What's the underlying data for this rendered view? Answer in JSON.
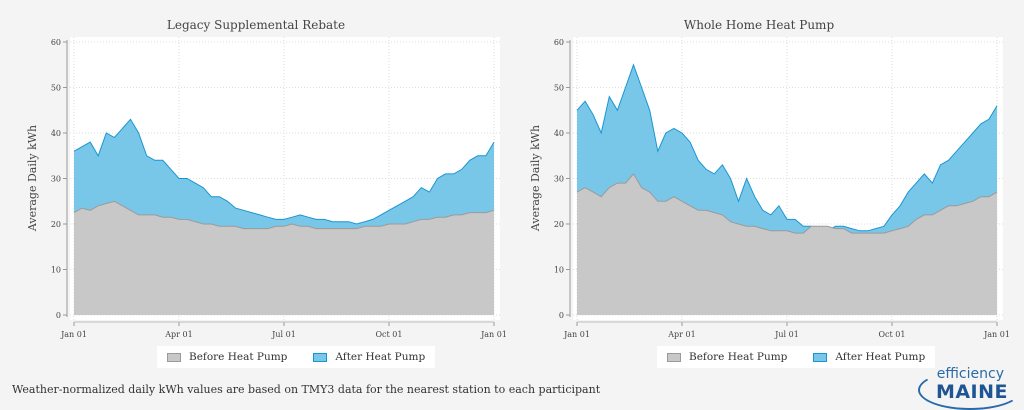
{
  "chart_data": [
    {
      "type": "area",
      "title": "Legacy Supplemental Rebate",
      "xlabel": "",
      "ylabel": "Average Daily kWh",
      "ylim": [
        0,
        60
      ],
      "yticks": [
        "0",
        "10",
        "20",
        "30",
        "40",
        "50",
        "60"
      ],
      "xticks": [
        "Jan 01",
        "Apr 01",
        "Jul 01",
        "Oct 01",
        "Jan 01"
      ],
      "x_unit": "week of year (0-52)",
      "grid": true,
      "legend_placement": "bottom",
      "series": [
        {
          "name": "Before Heat Pump",
          "color": "#c8c8c8",
          "line": "#9a9a9a",
          "values": [
            22.5,
            23.5,
            23,
            24,
            24.5,
            25,
            24,
            23,
            22,
            22,
            22,
            21.5,
            21.5,
            21,
            21,
            20.5,
            20,
            20,
            19.5,
            19.5,
            19.5,
            19,
            19,
            19,
            19,
            19.5,
            19.5,
            20,
            19.5,
            19.5,
            19,
            19,
            19,
            19,
            19,
            19,
            19.5,
            19.5,
            19.5,
            20,
            20,
            20,
            20.5,
            21,
            21,
            21.5,
            21.5,
            22,
            22,
            22.5,
            22.5,
            22.5,
            23
          ]
        },
        {
          "name": "After Heat Pump",
          "color": "#79c7e8",
          "line": "#1a95d3",
          "values": [
            36,
            37,
            38,
            35,
            40,
            39,
            41,
            43,
            40,
            35,
            34,
            34,
            32,
            30,
            30,
            29,
            28,
            26,
            26,
            25,
            23.5,
            23,
            22.5,
            22,
            21.5,
            21,
            21,
            21.5,
            22,
            21.5,
            21,
            21,
            20.5,
            20.5,
            20.5,
            20,
            20.5,
            21,
            22,
            23,
            24,
            25,
            26,
            28,
            27,
            30,
            31,
            31,
            32,
            34,
            35,
            35,
            38
          ]
        }
      ]
    },
    {
      "type": "area",
      "title": "Whole Home Heat Pump",
      "xlabel": "",
      "ylabel": "Average Daily kWh",
      "ylim": [
        0,
        60
      ],
      "yticks": [
        "0",
        "10",
        "20",
        "30",
        "40",
        "50",
        "60"
      ],
      "xticks": [
        "Jan 01",
        "Apr 01",
        "Jul 01",
        "Oct 01",
        "Jan 01"
      ],
      "x_unit": "week of year (0-52)",
      "grid": true,
      "legend_placement": "bottom",
      "series": [
        {
          "name": "Before Heat Pump",
          "color": "#c8c8c8",
          "line": "#9a9a9a",
          "values": [
            27,
            28,
            27,
            26,
            28,
            29,
            29,
            31,
            28,
            27,
            25,
            25,
            26,
            25,
            24,
            23,
            23,
            22.5,
            22,
            20.5,
            20,
            19.5,
            19.5,
            19,
            18.5,
            18.5,
            18.5,
            18,
            18,
            19.5,
            19.5,
            19.5,
            19,
            19,
            18,
            18,
            18,
            18,
            18,
            18.5,
            19,
            19.5,
            21,
            22,
            22,
            23,
            24,
            24,
            24.5,
            25,
            26,
            26,
            27
          ]
        },
        {
          "name": "After Heat Pump",
          "color": "#79c7e8",
          "line": "#1a95d3",
          "values": [
            45,
            47,
            44,
            40,
            48,
            45,
            50,
            55,
            50,
            45,
            36,
            40,
            41,
            40,
            38,
            34,
            32,
            31,
            33,
            30,
            25,
            30,
            26,
            23,
            22,
            24,
            21,
            21,
            19.5,
            19.5,
            19,
            18.5,
            19.5,
            19.5,
            19,
            18.5,
            18.5,
            19,
            19.5,
            22,
            24,
            27,
            29,
            31,
            29,
            33,
            34,
            36,
            38,
            40,
            42,
            43,
            46
          ]
        }
      ]
    }
  ],
  "footnote": "Weather-normalized daily kWh values are based on TMY3 data for the nearest station to each participant",
  "logo": {
    "line1": "efficiency",
    "line2": "MAINE"
  }
}
